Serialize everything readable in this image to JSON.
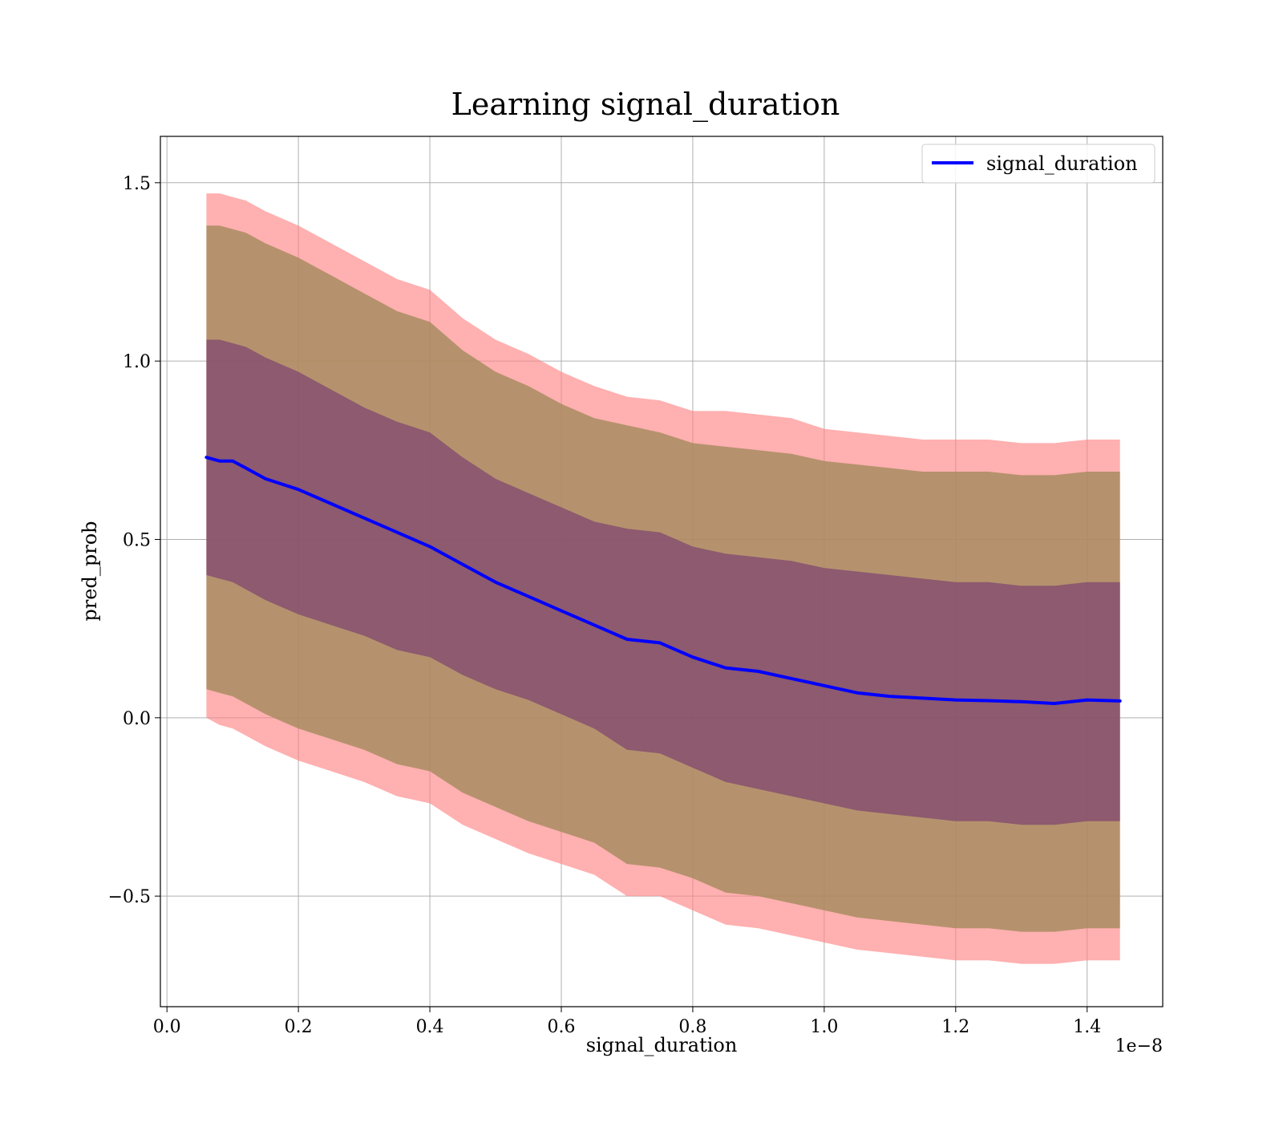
{
  "chart_data": {
    "type": "line",
    "title": "Learning signal_duration",
    "xlabel": "signal_duration",
    "ylabel": "pred_prob",
    "x_offset_label": "1e−8",
    "xlim": [
      -0.01,
      1.515
    ],
    "ylim": [
      -0.81,
      1.63
    ],
    "x_ticks": [
      0.0,
      0.2,
      0.4,
      0.6,
      0.8,
      1.0,
      1.2,
      1.4
    ],
    "x_tick_labels": [
      "0.0",
      "0.2",
      "0.4",
      "0.6",
      "0.8",
      "1.0",
      "1.2",
      "1.4"
    ],
    "y_ticks": [
      -0.5,
      0.0,
      0.5,
      1.0,
      1.5
    ],
    "y_tick_labels": [
      "−0.5",
      "0.0",
      "0.5",
      "1.0",
      "1.5"
    ],
    "grid": true,
    "legend_position": "top-right",
    "colors": {
      "line": "#0000ff",
      "band_outer": "#ff8080",
      "band_middle": "#a0895a",
      "band_inner": "#7a4070",
      "grid": "#b0b0b0"
    },
    "series": [
      {
        "name": "signal_duration",
        "x": [
          0.06,
          0.08,
          0.1,
          0.12,
          0.15,
          0.2,
          0.25,
          0.3,
          0.35,
          0.4,
          0.45,
          0.5,
          0.55,
          0.6,
          0.65,
          0.7,
          0.75,
          0.8,
          0.85,
          0.9,
          0.95,
          1.0,
          1.05,
          1.1,
          1.15,
          1.2,
          1.25,
          1.3,
          1.35,
          1.4,
          1.45
        ],
        "y": [
          0.73,
          0.72,
          0.72,
          0.7,
          0.67,
          0.64,
          0.6,
          0.56,
          0.52,
          0.48,
          0.43,
          0.38,
          0.34,
          0.3,
          0.26,
          0.22,
          0.21,
          0.17,
          0.14,
          0.13,
          0.11,
          0.09,
          0.07,
          0.06,
          0.055,
          0.05,
          0.048,
          0.045,
          0.04,
          0.05,
          0.047
        ]
      }
    ],
    "bands": [
      {
        "role": "outer",
        "x": [
          0.06,
          0.08,
          0.1,
          0.12,
          0.15,
          0.2,
          0.25,
          0.3,
          0.35,
          0.4,
          0.45,
          0.5,
          0.55,
          0.6,
          0.65,
          0.7,
          0.75,
          0.8,
          0.85,
          0.9,
          0.95,
          1.0,
          1.05,
          1.1,
          1.15,
          1.2,
          1.25,
          1.3,
          1.35,
          1.4,
          1.45
        ],
        "upper": [
          1.47,
          1.47,
          1.46,
          1.45,
          1.42,
          1.38,
          1.33,
          1.28,
          1.23,
          1.2,
          1.12,
          1.06,
          1.02,
          0.97,
          0.93,
          0.9,
          0.89,
          0.86,
          0.86,
          0.85,
          0.84,
          0.81,
          0.8,
          0.79,
          0.78,
          0.78,
          0.78,
          0.77,
          0.77,
          0.78,
          0.78
        ],
        "lower": [
          0.0,
          -0.02,
          -0.03,
          -0.05,
          -0.08,
          -0.12,
          -0.15,
          -0.18,
          -0.22,
          -0.24,
          -0.3,
          -0.34,
          -0.38,
          -0.41,
          -0.44,
          -0.5,
          -0.5,
          -0.54,
          -0.58,
          -0.59,
          -0.61,
          -0.63,
          -0.65,
          -0.66,
          -0.67,
          -0.68,
          -0.68,
          -0.69,
          -0.69,
          -0.68,
          -0.68
        ]
      },
      {
        "role": "middle",
        "x": [
          0.06,
          0.08,
          0.1,
          0.12,
          0.15,
          0.2,
          0.25,
          0.3,
          0.35,
          0.4,
          0.45,
          0.5,
          0.55,
          0.6,
          0.65,
          0.7,
          0.75,
          0.8,
          0.85,
          0.9,
          0.95,
          1.0,
          1.05,
          1.1,
          1.15,
          1.2,
          1.25,
          1.3,
          1.35,
          1.4,
          1.45
        ],
        "upper": [
          1.38,
          1.38,
          1.37,
          1.36,
          1.33,
          1.29,
          1.24,
          1.19,
          1.14,
          1.11,
          1.03,
          0.97,
          0.93,
          0.88,
          0.84,
          0.82,
          0.8,
          0.77,
          0.76,
          0.75,
          0.74,
          0.72,
          0.71,
          0.7,
          0.69,
          0.69,
          0.69,
          0.68,
          0.68,
          0.69,
          0.69
        ],
        "lower": [
          0.08,
          0.07,
          0.06,
          0.04,
          0.01,
          -0.03,
          -0.06,
          -0.09,
          -0.13,
          -0.15,
          -0.21,
          -0.25,
          -0.29,
          -0.32,
          -0.35,
          -0.41,
          -0.42,
          -0.45,
          -0.49,
          -0.5,
          -0.52,
          -0.54,
          -0.56,
          -0.57,
          -0.58,
          -0.59,
          -0.59,
          -0.6,
          -0.6,
          -0.59,
          -0.59
        ]
      },
      {
        "role": "inner",
        "x": [
          0.06,
          0.08,
          0.1,
          0.12,
          0.15,
          0.2,
          0.25,
          0.3,
          0.35,
          0.4,
          0.45,
          0.5,
          0.55,
          0.6,
          0.65,
          0.7,
          0.75,
          0.8,
          0.85,
          0.9,
          0.95,
          1.0,
          1.05,
          1.1,
          1.15,
          1.2,
          1.25,
          1.3,
          1.35,
          1.4,
          1.45
        ],
        "upper": [
          1.06,
          1.06,
          1.05,
          1.04,
          1.01,
          0.97,
          0.92,
          0.87,
          0.83,
          0.8,
          0.73,
          0.67,
          0.63,
          0.59,
          0.55,
          0.53,
          0.52,
          0.48,
          0.46,
          0.45,
          0.44,
          0.42,
          0.41,
          0.4,
          0.39,
          0.38,
          0.38,
          0.37,
          0.37,
          0.38,
          0.38
        ],
        "lower": [
          0.4,
          0.39,
          0.38,
          0.36,
          0.33,
          0.29,
          0.26,
          0.23,
          0.19,
          0.17,
          0.12,
          0.08,
          0.05,
          0.01,
          -0.03,
          -0.09,
          -0.1,
          -0.14,
          -0.18,
          -0.2,
          -0.22,
          -0.24,
          -0.26,
          -0.27,
          -0.28,
          -0.29,
          -0.29,
          -0.3,
          -0.3,
          -0.29,
          -0.29
        ]
      }
    ]
  }
}
